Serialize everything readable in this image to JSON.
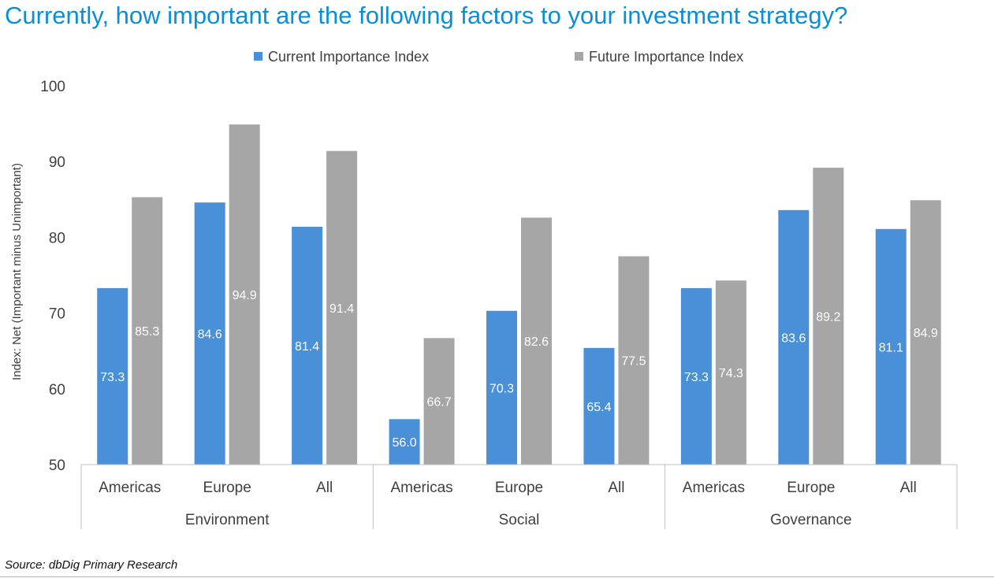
{
  "title": "Currently, how important are the following factors to your investment strategy?",
  "source": "Source: dbDig Primary Research",
  "colors": {
    "current": "#4a90d9",
    "future": "#a6a6a6",
    "title": "#0a8fd6",
    "axis_text": "#404040"
  },
  "chart_data": {
    "type": "bar",
    "title": "Currently, how important are the following factors to your investment strategy?",
    "ylabel": "Index: Net (Important minus Unimportant)",
    "xlabel": "",
    "ylim": [
      50,
      100
    ],
    "yticks": [
      50,
      60,
      70,
      80,
      90,
      100
    ],
    "grid": false,
    "legend_position": "top",
    "groups": [
      "Environment",
      "Social",
      "Governance"
    ],
    "categories": [
      "Americas",
      "Europe",
      "All",
      "Americas",
      "Europe",
      "All",
      "Americas",
      "Europe",
      "All"
    ],
    "series": [
      {
        "name": "Current Importance Index",
        "values": [
          73.3,
          84.6,
          81.4,
          56.0,
          70.3,
          65.4,
          73.3,
          83.6,
          81.1
        ]
      },
      {
        "name": "Future Importance Index",
        "values": [
          85.3,
          94.9,
          91.4,
          66.7,
          82.6,
          77.5,
          74.3,
          89.2,
          84.9
        ]
      }
    ],
    "data_label_format": "0.1f"
  }
}
